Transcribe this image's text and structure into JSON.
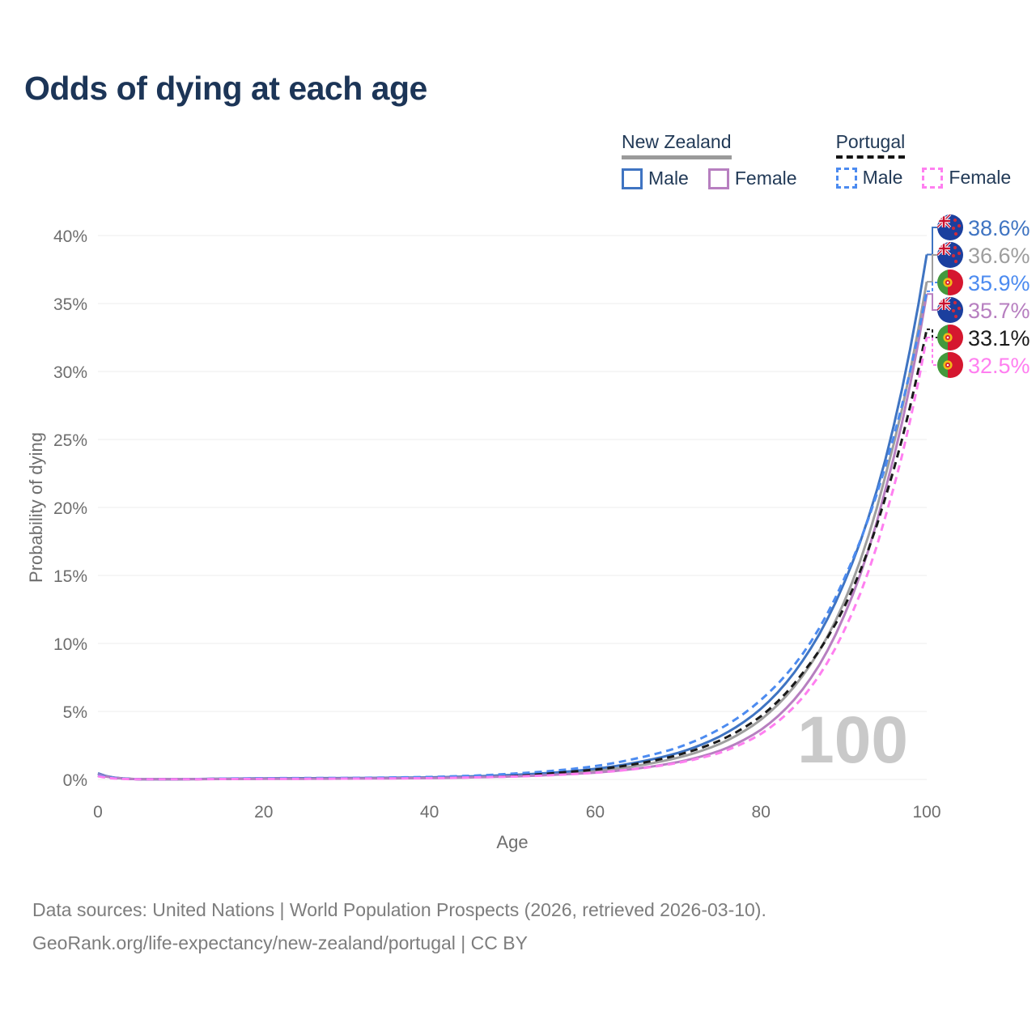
{
  "title": "Odds of dying at each age",
  "legend": {
    "groups": [
      {
        "name": "New Zealand",
        "line_style": "solid",
        "underline_color": "#9a9a9a",
        "items": [
          {
            "label": "Male",
            "color": "#3f74c2",
            "dashed": false
          },
          {
            "label": "Female",
            "color": "#b77fc0",
            "dashed": false
          }
        ]
      },
      {
        "name": "Portugal",
        "line_style": "dashed",
        "underline_color": "#141414",
        "items": [
          {
            "label": "Male",
            "color": "#4c8bf0",
            "dashed": true
          },
          {
            "label": "Female",
            "color": "#ff7ff0",
            "dashed": true
          }
        ]
      }
    ]
  },
  "chart_data": {
    "type": "line",
    "title": "Odds of dying at each age",
    "xlabel": "Age",
    "ylabel": "Probability of dying",
    "xlim": [
      0,
      100
    ],
    "ylim": [
      0,
      40
    ],
    "grid": "horizontal",
    "x_ticks": [
      0,
      20,
      40,
      60,
      80,
      100
    ],
    "y_ticks": [
      "0%",
      "5%",
      "10%",
      "15%",
      "20%",
      "25%",
      "30%",
      "35%",
      "40%"
    ],
    "watermark": "100",
    "x": [
      0,
      5,
      10,
      15,
      20,
      25,
      30,
      35,
      40,
      45,
      50,
      55,
      60,
      65,
      70,
      75,
      80,
      85,
      90,
      95,
      100
    ],
    "series": [
      {
        "name": "New Zealand",
        "group": "New Zealand",
        "color": "#9e9e9e",
        "dashed": false,
        "flag": "nz",
        "end_label": "36.6%",
        "values": [
          0.42,
          0.02,
          0.02,
          0.04,
          0.06,
          0.07,
          0.08,
          0.1,
          0.12,
          0.18,
          0.27,
          0.42,
          0.63,
          1.0,
          1.6,
          2.6,
          4.4,
          7.6,
          13.0,
          22.3,
          36.6
        ]
      },
      {
        "name": "New Zealand Male",
        "group": "New Zealand",
        "color": "#3f74c2",
        "dashed": false,
        "flag": "nz",
        "end_label": "38.6%",
        "values": [
          0.45,
          0.02,
          0.02,
          0.05,
          0.08,
          0.09,
          0.1,
          0.12,
          0.15,
          0.22,
          0.33,
          0.5,
          0.78,
          1.25,
          1.95,
          3.15,
          5.2,
          8.7,
          14.4,
          23.5,
          38.6
        ]
      },
      {
        "name": "New Zealand Female",
        "group": "New Zealand",
        "color": "#b77fc0",
        "dashed": false,
        "flag": "nz",
        "end_label": "35.7%",
        "values": [
          0.38,
          0.02,
          0.02,
          0.03,
          0.04,
          0.05,
          0.06,
          0.08,
          0.1,
          0.15,
          0.22,
          0.34,
          0.5,
          0.8,
          1.28,
          2.1,
          3.65,
          6.6,
          12.0,
          21.3,
          35.7
        ]
      },
      {
        "name": "Portugal",
        "group": "Portugal",
        "color": "#1a1a1a",
        "dashed": true,
        "flag": "pt",
        "end_label": "33.1%",
        "values": [
          0.27,
          0.02,
          0.02,
          0.04,
          0.06,
          0.07,
          0.08,
          0.1,
          0.13,
          0.2,
          0.31,
          0.48,
          0.72,
          1.15,
          1.8,
          2.85,
          4.65,
          7.8,
          12.6,
          20.7,
          33.1
        ]
      },
      {
        "name": "Portugal Male",
        "group": "Portugal",
        "color": "#4c8bf0",
        "dashed": true,
        "flag": "pt",
        "end_label": "35.9%",
        "values": [
          0.3,
          0.02,
          0.02,
          0.06,
          0.09,
          0.1,
          0.11,
          0.14,
          0.18,
          0.27,
          0.42,
          0.64,
          0.98,
          1.55,
          2.35,
          3.7,
          5.85,
          9.2,
          14.7,
          23.0,
          35.9
        ]
      },
      {
        "name": "Portugal Female",
        "group": "Portugal",
        "color": "#ff7ff0",
        "dashed": true,
        "flag": "pt",
        "end_label": "32.5%",
        "values": [
          0.24,
          0.01,
          0.01,
          0.03,
          0.04,
          0.05,
          0.06,
          0.07,
          0.09,
          0.14,
          0.21,
          0.32,
          0.49,
          0.78,
          1.22,
          1.95,
          3.35,
          6.0,
          10.9,
          19.3,
          32.5
        ]
      }
    ]
  },
  "footer": {
    "line1": "Data sources: United Nations | World Population Prospects (2026, retrieved 2026-03-10).",
    "line2": "GeoRank.org/life-expectancy/new-zealand/portugal | CC BY"
  }
}
